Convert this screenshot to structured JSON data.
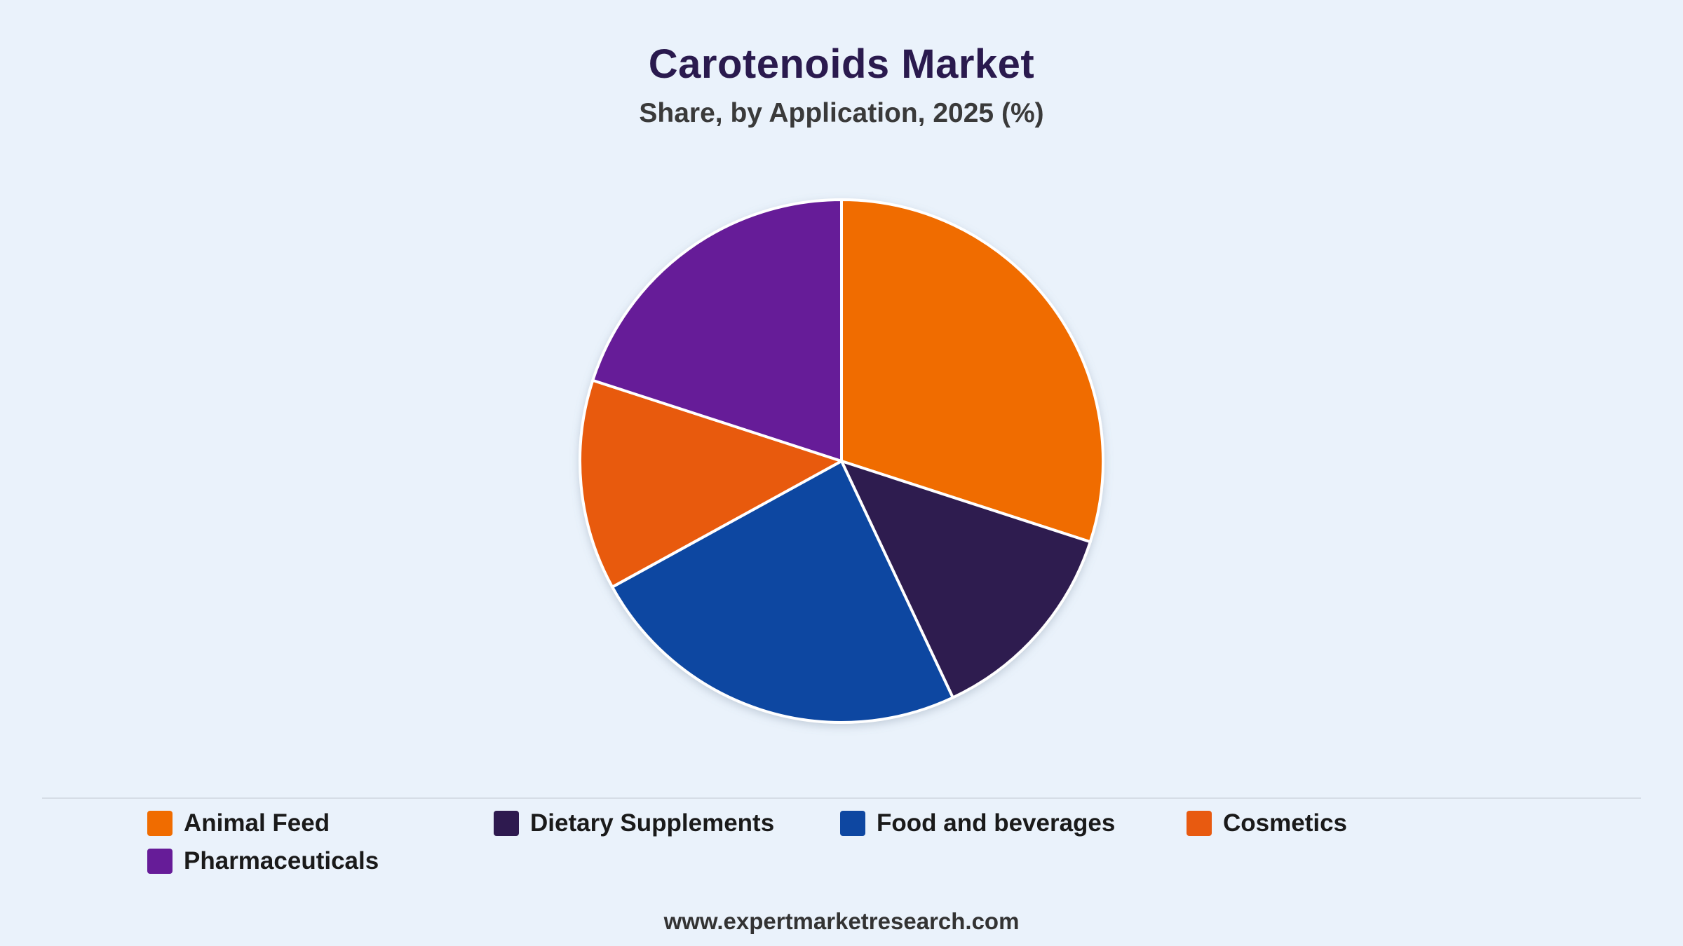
{
  "header": {
    "title": "Carotenoids Market",
    "subtitle": "Share, by Application, 2025 (%)"
  },
  "footer": {
    "source": "www.expertmarketresearch.com"
  },
  "chart_data": {
    "type": "pie",
    "title": "Carotenoids Market",
    "subtitle": "Share, by Application, 2025 (%)",
    "legend_position": "bottom",
    "slices": [
      {
        "label": "Animal Feed",
        "value": 30,
        "color": "#f06c00"
      },
      {
        "label": "Dietary Supplements",
        "value": 13,
        "color": "#2e1a4f"
      },
      {
        "label": "Food and beverages",
        "value": 24,
        "color": "#0e47a1"
      },
      {
        "label": "Cosmetics",
        "value": 13,
        "color": "#e85a10"
      },
      {
        "label": "Pharmaceuticals",
        "value": 20,
        "color": "#661c98"
      }
    ]
  }
}
